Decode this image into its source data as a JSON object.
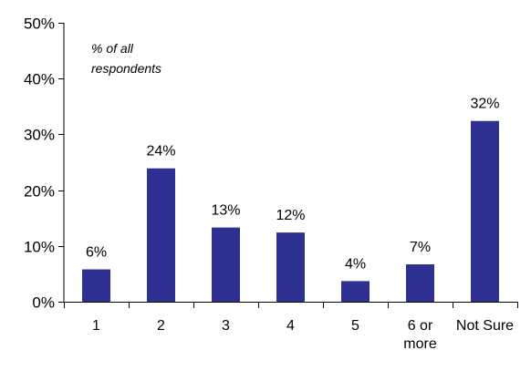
{
  "chart_data": {
    "type": "bar",
    "categories": [
      "1",
      "2",
      "3",
      "4",
      "5",
      "6 or more",
      "Not Sure"
    ],
    "category_lines": [
      [
        "1"
      ],
      [
        "2"
      ],
      [
        "3"
      ],
      [
        "4"
      ],
      [
        "5"
      ],
      [
        "6 or",
        "more"
      ],
      [
        "Not Sure"
      ]
    ],
    "values": [
      6,
      24,
      13,
      12,
      4,
      7,
      32
    ],
    "bar_values": [
      5.8,
      23.9,
      13.3,
      12.4,
      3.7,
      6.7,
      32.4
    ],
    "data_labels": [
      "6%",
      "24%",
      "13%",
      "12%",
      "4%",
      "7%",
      "32%"
    ],
    "annotation": [
      "% of all",
      "respondents"
    ],
    "ylim": [
      0,
      50
    ],
    "yticks": [
      0,
      10,
      20,
      30,
      40,
      50
    ],
    "ytick_labels": [
      "0%",
      "10%",
      "20%",
      "30%",
      "40%",
      "50%"
    ],
    "grid": false,
    "legend": "none",
    "bar_color": "#2E3192"
  }
}
